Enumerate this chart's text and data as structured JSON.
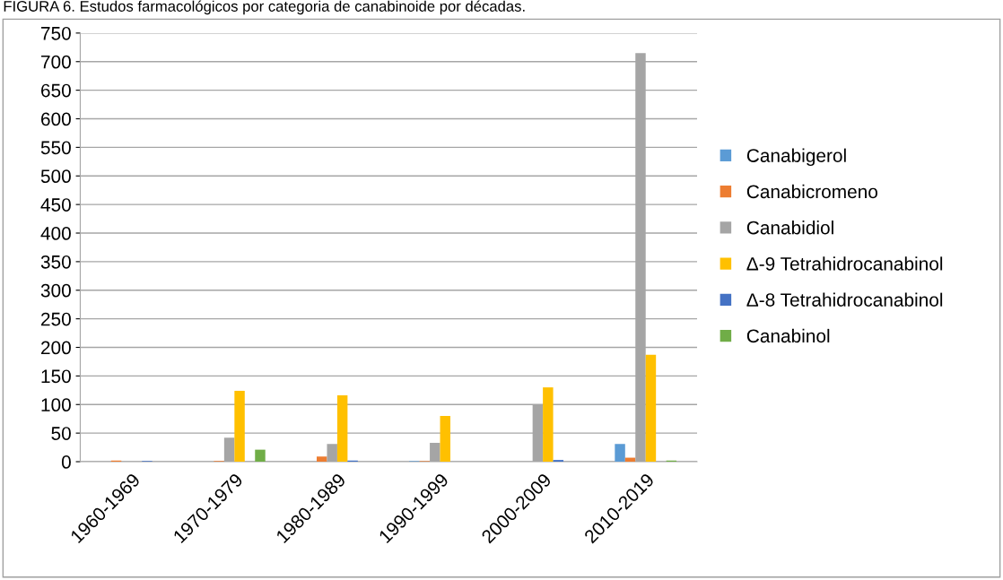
{
  "chart_data": {
    "type": "bar",
    "title": "FIGURA 6. Estudos farmacológicos por categoria de canabinoide por décadas.",
    "categories": [
      "1960-1969",
      "1970-1979",
      "1980-1989",
      "1990-1999",
      "2000-2009",
      "2010-2019"
    ],
    "series": [
      {
        "name": "Canabigerol",
        "color": "#5b9bd5",
        "values": [
          0,
          0,
          0,
          1,
          0,
          31
        ]
      },
      {
        "name": "Canabicromeno",
        "color": "#ed7d31",
        "values": [
          2,
          1,
          9,
          1,
          0,
          7
        ]
      },
      {
        "name": "Canabidiol",
        "color": "#a5a5a5",
        "values": [
          null,
          42,
          31,
          33,
          100,
          715
        ]
      },
      {
        "name": "Δ-9 Tetrahidrocanabinol",
        "color": "#ffc000",
        "values": [
          0,
          124,
          116,
          80,
          130,
          187
        ]
      },
      {
        "name": "Δ-8 Tetrahidrocanabinol",
        "color": "#4472c4",
        "values": [
          1,
          0,
          2,
          0,
          3,
          0
        ]
      },
      {
        "name": "Canabinol",
        "color": "#70ad47",
        "values": [
          0,
          21,
          0,
          0,
          0,
          2
        ]
      }
    ],
    "ylim": [
      0,
      750
    ],
    "yticks": [
      0,
      50,
      100,
      150,
      200,
      250,
      300,
      350,
      400,
      450,
      500,
      550,
      600,
      650,
      700,
      750
    ],
    "grid": "y",
    "legend": "right"
  }
}
